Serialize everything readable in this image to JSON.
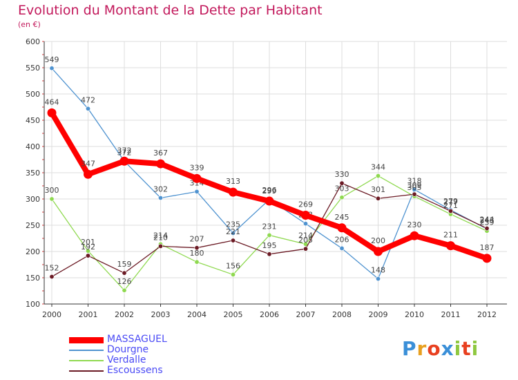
{
  "title": "Evolution du Montant de la Dette par Habitant",
  "subtitle": "(en €)",
  "logo_text": "Proxiti",
  "chart_data": {
    "type": "line",
    "title": "Evolution du Montant de la Dette par Habitant",
    "ylabel": "(en €)",
    "ylim": [
      100,
      600
    ],
    "yticks": [
      100,
      150,
      200,
      250,
      300,
      350,
      400,
      450,
      500,
      550,
      600
    ],
    "grid": true,
    "legend_position": "bottom-left",
    "x": [
      "2000",
      "2001",
      "2002",
      "2003",
      "2004",
      "2005",
      "2006",
      "2007",
      "2008",
      "2009",
      "2010",
      "2011",
      "2012"
    ],
    "series": [
      {
        "name": "MASSAGUEL",
        "color": "#ff0000",
        "values": [
          464,
          347,
          372,
          367,
          339,
          313,
          296,
          269,
          245,
          200,
          230,
          211,
          187
        ]
      },
      {
        "name": "Dourgne",
        "color": "#4f93d0",
        "values": [
          549,
          472,
          372,
          302,
          314,
          235,
          299,
          253,
          206,
          148,
          318,
          279,
          243
        ]
      },
      {
        "name": "Verdalle",
        "color": "#8fd950",
        "values": [
          300,
          201,
          126,
          214,
          180,
          156,
          231,
          214,
          303,
          344,
          305,
          271,
          239
        ]
      },
      {
        "name": "Escoussens",
        "color": "#6b1a24",
        "values": [
          152,
          192,
          159,
          210,
          207,
          221,
          195,
          205,
          330,
          301,
          309,
          277,
          244
        ]
      }
    ]
  }
}
